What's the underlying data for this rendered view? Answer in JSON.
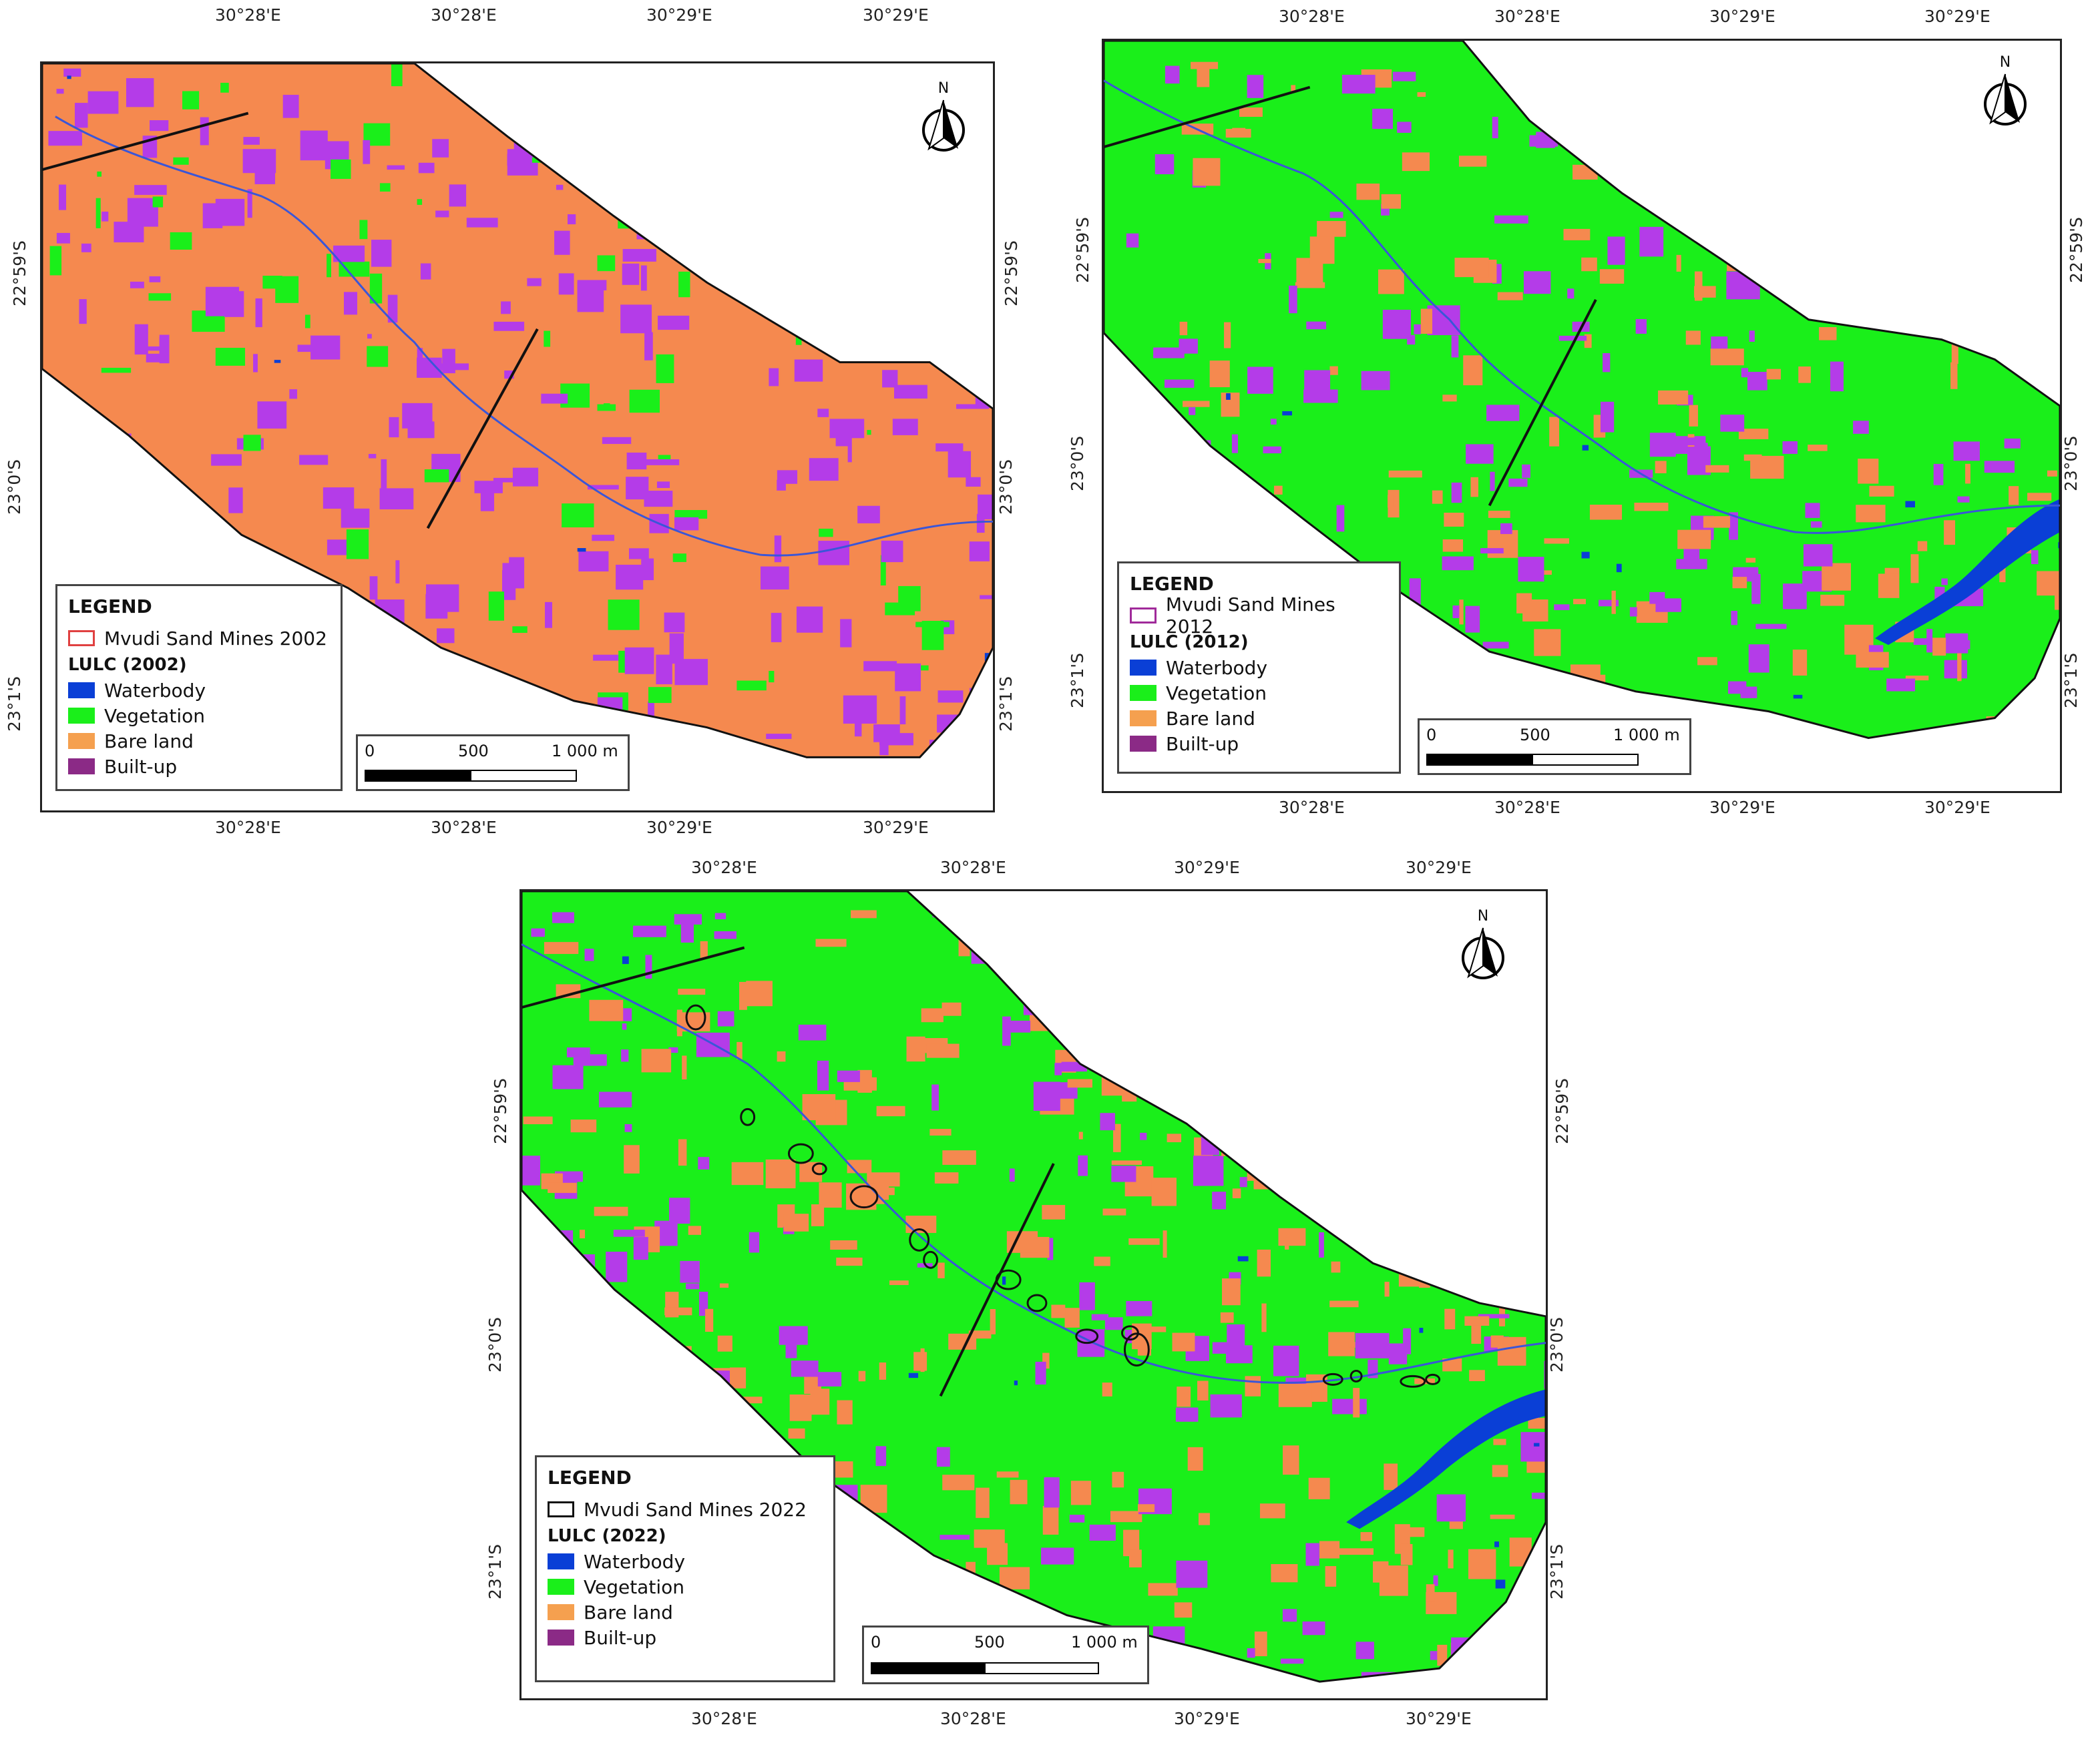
{
  "colors": {
    "waterbody": "#0a3fd6",
    "vegetation": "#1aef1a",
    "bare_land": "#f5894f",
    "builtup": "#b43ce8",
    "builtup_legend": "#8b2a86",
    "bare_land_legend": "#f5a04f"
  },
  "panels": [
    {
      "year": "2002",
      "top_ticks": [
        "30°28'E",
        "30°28'E",
        "30°29'E",
        "30°29'E"
      ],
      "bottom_ticks": [
        "30°28'E",
        "30°28'E",
        "30°29'E",
        "30°29'E"
      ],
      "left_ticks": [
        "22°59'S",
        "23°0'S",
        "23°1'S"
      ],
      "right_ticks": [
        "22°59'S",
        "23°0'S",
        "23°1'S"
      ],
      "north_label": "N",
      "legend": {
        "title": "LEGEND",
        "mines_label": "Mvudi Sand Mines 2002",
        "mines_color": "#e04040",
        "lulc_title": "LULC (2002)",
        "classes": [
          "Waterbody",
          "Vegetation",
          "Bare land",
          "Built-up"
        ]
      },
      "scale": {
        "labels": [
          "0",
          "500",
          "1 000 m"
        ]
      },
      "dominant": "bare_land"
    },
    {
      "year": "2012",
      "top_ticks": [
        "30°28'E",
        "30°28'E",
        "30°29'E",
        "30°29'E"
      ],
      "bottom_ticks": [
        "30°28'E",
        "30°28'E",
        "30°29'E",
        "30°29'E"
      ],
      "left_ticks": [
        "22°59'S",
        "23°0'S",
        "23°1'S"
      ],
      "right_ticks": [
        "22°59'S",
        "23°0'S",
        "23°1'S"
      ],
      "north_label": "N",
      "legend": {
        "title": "LEGEND",
        "mines_label": "Mvudi Sand Mines 2012",
        "mines_color": "#a02a9a",
        "lulc_title": "LULC (2012)",
        "classes": [
          "Waterbody",
          "Vegetation",
          "Bare land",
          "Built-up"
        ]
      },
      "scale": {
        "labels": [
          "0",
          "500",
          "1 000 m"
        ]
      },
      "dominant": "vegetation"
    },
    {
      "year": "2022",
      "top_ticks": [
        "30°28'E",
        "30°28'E",
        "30°29'E",
        "30°29'E"
      ],
      "bottom_ticks": [
        "30°28'E",
        "30°28'E",
        "30°29'E",
        "30°29'E"
      ],
      "left_ticks": [
        "22°59'S",
        "23°0'S",
        "23°1'S"
      ],
      "right_ticks": [
        "22°59'S",
        "23°0'S",
        "23°1'S"
      ],
      "north_label": "N",
      "legend": {
        "title": "LEGEND",
        "mines_label": "Mvudi Sand Mines 2022",
        "mines_color": "#111111",
        "lulc_title": "LULC (2022)",
        "classes": [
          "Waterbody",
          "Vegetation",
          "Bare land",
          "Built-up"
        ]
      },
      "scale": {
        "labels": [
          "0",
          "500",
          "1 000 m"
        ]
      },
      "dominant": "mixed"
    }
  ]
}
